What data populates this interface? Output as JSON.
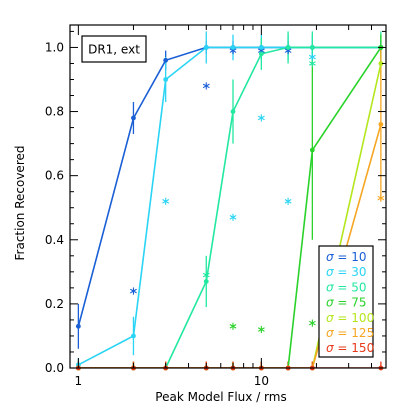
{
  "chart_data": {
    "type": "line",
    "xlabel": "Peak Model Flux / rms",
    "ylabel": "Fraction Recovered",
    "x_scale": "log",
    "xlim": [
      0.9,
      48
    ],
    "ylim": [
      0.0,
      1.07
    ],
    "x_ticks": [
      {
        "value": 1,
        "label": "1"
      },
      {
        "value": 10,
        "label": "10"
      }
    ],
    "y_ticks": [
      "0.0",
      "0.2",
      "0.4",
      "0.6",
      "0.8",
      "1.0"
    ],
    "annotation": "DR1, ext",
    "legend_position": "bottom-right",
    "legend_symbol": "σ",
    "series": [
      {
        "name": "10",
        "color": "#1a5fd6",
        "x": [
          1,
          2,
          3,
          5,
          7,
          10,
          14,
          19,
          45
        ],
        "y": [
          0.13,
          0.78,
          0.96,
          1.0,
          1.0,
          1.0,
          1.0,
          1.0,
          1.0
        ],
        "err": [
          0.07,
          0.05,
          0.03,
          0.02,
          0.02,
          0.02,
          0.02,
          0.02,
          0.02
        ],
        "markers": [
          {
            "x": 2,
            "y": 0.24
          },
          {
            "x": 5,
            "y": 0.88
          },
          {
            "x": 7,
            "y": 0.99
          },
          {
            "x": 10,
            "y": 0.99
          },
          {
            "x": 14,
            "y": 0.99
          }
        ]
      },
      {
        "name": "30",
        "color": "#2ad4f4",
        "x": [
          1,
          2,
          3,
          5,
          7,
          10,
          14,
          19,
          45
        ],
        "y": [
          0.01,
          0.1,
          0.9,
          1.0,
          1.0,
          1.0,
          1.0,
          1.0,
          1.0
        ],
        "err": [
          0.02,
          0.06,
          0.07,
          0.05,
          0.04,
          0.04,
          0.04,
          0.04,
          0.04
        ],
        "markers": [
          {
            "x": 3,
            "y": 0.52
          },
          {
            "x": 7,
            "y": 0.47
          },
          {
            "x": 10,
            "y": 0.78
          },
          {
            "x": 14,
            "y": 0.52
          },
          {
            "x": 19,
            "y": 0.97
          }
        ]
      },
      {
        "name": "50",
        "color": "#22e8a0",
        "x": [
          1,
          2,
          3,
          5,
          7,
          10,
          14,
          19,
          45
        ],
        "y": [
          0.0,
          0.0,
          0.0,
          0.27,
          0.8,
          0.98,
          1.0,
          1.0,
          1.0
        ],
        "err": [
          0.02,
          0.02,
          0.02,
          0.08,
          0.1,
          0.05,
          0.05,
          0.05,
          0.05
        ],
        "markers": [
          {
            "x": 5,
            "y": 0.29
          },
          {
            "x": 19,
            "y": 0.95
          }
        ]
      },
      {
        "name": "75",
        "color": "#2ad22a",
        "x": [
          1,
          2,
          3,
          5,
          7,
          10,
          14,
          19,
          45
        ],
        "y": [
          0.0,
          0.0,
          0.0,
          0.0,
          0.0,
          0.0,
          0.0,
          0.68,
          1.0
        ],
        "err": [
          0.02,
          0.02,
          0.02,
          0.02,
          0.02,
          0.02,
          0.02,
          0.28,
          0.04
        ],
        "markers": [
          {
            "x": 7,
            "y": 0.13
          },
          {
            "x": 10,
            "y": 0.12
          },
          {
            "x": 19,
            "y": 0.14
          }
        ]
      },
      {
        "name": "100",
        "color": "#b4e61e",
        "x": [
          1,
          2,
          3,
          5,
          7,
          10,
          14,
          19,
          45
        ],
        "y": [
          0.0,
          0.0,
          0.0,
          0.0,
          0.0,
          0.0,
          0.0,
          0.0,
          0.95
        ],
        "err": [
          0.02,
          0.02,
          0.02,
          0.02,
          0.02,
          0.02,
          0.02,
          0.02,
          0.05
        ],
        "markers": []
      },
      {
        "name": "125",
        "color": "#f5a623",
        "x": [
          1,
          2,
          3,
          5,
          7,
          10,
          14,
          19,
          45
        ],
        "y": [
          0.0,
          0.0,
          0.0,
          0.0,
          0.0,
          0.0,
          0.0,
          0.0,
          0.76
        ],
        "err": [
          0.02,
          0.02,
          0.02,
          0.02,
          0.02,
          0.02,
          0.02,
          0.02,
          0.24
        ],
        "markers": [
          {
            "x": 45,
            "y": 0.53
          }
        ]
      },
      {
        "name": "150",
        "color": "#e83a1a",
        "x": [
          1,
          2,
          3,
          5,
          7,
          10,
          14,
          19,
          45
        ],
        "y": [
          0.0,
          0.0,
          0.0,
          0.0,
          0.0,
          0.0,
          0.0,
          0.0,
          0.0
        ],
        "err": [
          0.02,
          0.02,
          0.02,
          0.02,
          0.02,
          0.02,
          0.02,
          0.02,
          0.02
        ],
        "markers": []
      }
    ]
  }
}
